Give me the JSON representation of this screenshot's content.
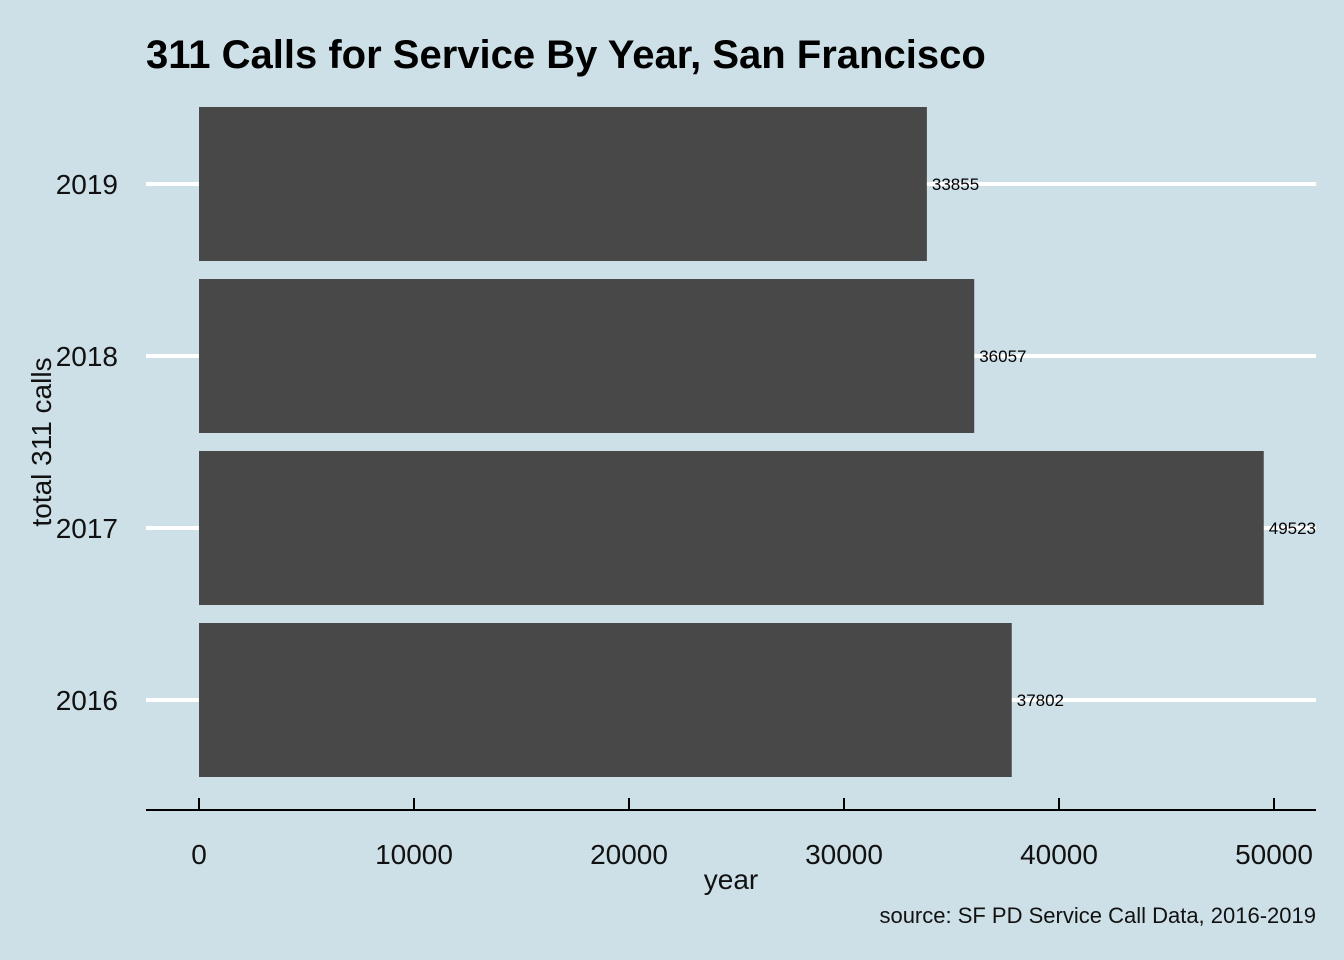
{
  "chart_data": {
    "type": "bar",
    "orientation": "horizontal",
    "title": "311 Calls for Service By Year, San Francisco",
    "xlabel": "year",
    "ylabel": "total 311 calls",
    "caption": "source: SF PD Service Call Data, 2016-2019",
    "categories": [
      "2016",
      "2017",
      "2018",
      "2019"
    ],
    "values": [
      37802,
      49523,
      36057,
      33855
    ],
    "value_labels": [
      "37802",
      "49523",
      "36057",
      "33855"
    ],
    "xlim": [
      0,
      50000
    ],
    "x_ticks": [
      0,
      10000,
      20000,
      30000,
      40000,
      50000
    ],
    "x_tick_labels": [
      "0",
      "10000",
      "20000",
      "30000",
      "40000",
      "50000"
    ],
    "grid": "horizontal-major",
    "legend": "none",
    "colors": {
      "background": "#CDE0E7",
      "bar": "#484848",
      "grid": "#FFFFFF",
      "axis": "#000000"
    }
  }
}
